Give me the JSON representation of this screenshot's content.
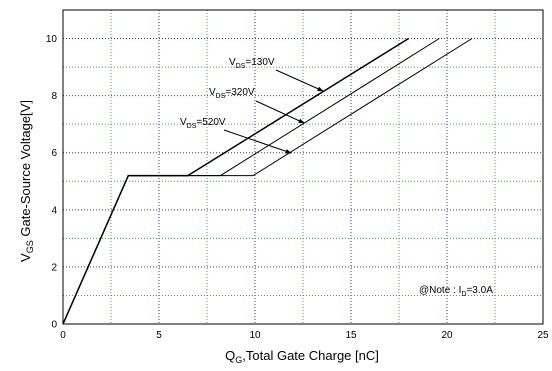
{
  "chart_data": {
    "type": "line",
    "x_axis": {
      "main": "Q",
      "sub": "G",
      "rest": ",Total Gate Charge [nC]",
      "range": [
        0,
        25
      ],
      "ticks": [
        0,
        5,
        10,
        15,
        20,
        25
      ]
    },
    "y_axis": {
      "main": "V",
      "sub": "GS",
      "rest": " Gate-Source Voltage[V]",
      "range": [
        0,
        11
      ],
      "ticks": [
        0,
        2,
        4,
        6,
        8,
        10
      ]
    },
    "grid": true,
    "series": [
      {
        "label_main": "V",
        "label_sub": "DS",
        "label_rest": "=130V",
        "points": [
          [
            0,
            0
          ],
          [
            3.4,
            5.2
          ],
          [
            6.5,
            5.2
          ],
          [
            18.0,
            10.0
          ]
        ]
      },
      {
        "label_main": "V",
        "label_sub": "DS",
        "label_rest": "=320V",
        "points": [
          [
            0,
            0
          ],
          [
            3.4,
            5.2
          ],
          [
            8.2,
            5.2
          ],
          [
            19.6,
            10.0
          ]
        ]
      },
      {
        "label_main": "V",
        "label_sub": "DS",
        "label_rest": "=520V",
        "points": [
          [
            0,
            0
          ],
          [
            3.4,
            5.2
          ],
          [
            9.9,
            5.2
          ],
          [
            21.3,
            10.0
          ]
        ]
      }
    ],
    "note": {
      "prefix": "@Note : I",
      "sub": "D",
      "rest": "=3.0A"
    }
  }
}
